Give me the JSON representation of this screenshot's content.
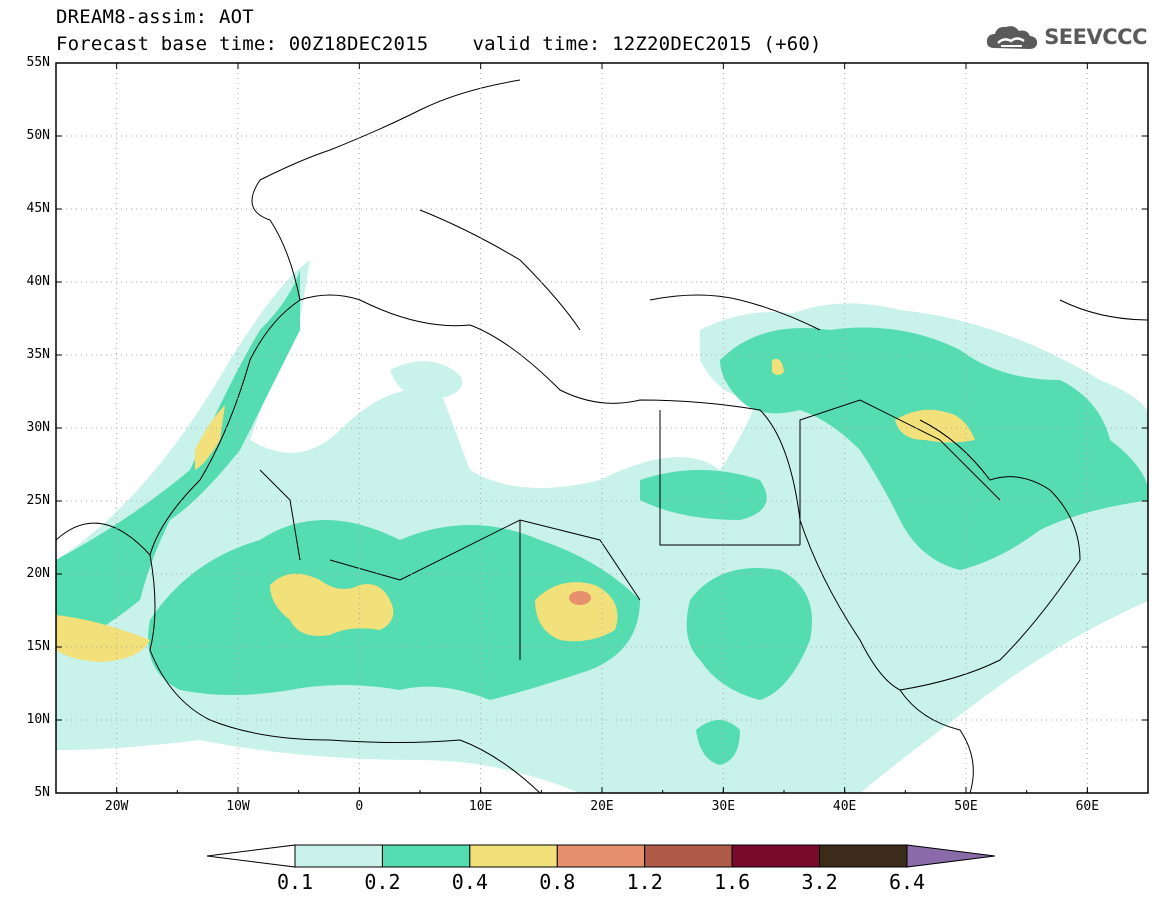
{
  "header": {
    "line1": "DREAM8-assim: AOT",
    "base_time": "Forecast base time: 00Z18DEC2015",
    "valid_time": "valid time: 12Z20DEC2015 (+60)"
  },
  "logo": {
    "text": "SEEVCCC",
    "icon": "cloud-icon"
  },
  "map": {
    "region": "North Africa, Europe and Middle East",
    "lon_range": [
      -25,
      65
    ],
    "lat_range": [
      5,
      55
    ],
    "lat_labels": [
      "55N",
      "50N",
      "45N",
      "40N",
      "35N",
      "30N",
      "25N",
      "20N",
      "15N",
      "10N",
      "5N"
    ],
    "lon_labels": [
      "20W",
      "10W",
      "0",
      "10E",
      "20E",
      "30E",
      "40E",
      "50E",
      "60E"
    ],
    "grid": "dotted",
    "variable": "AOT"
  },
  "colorbar": {
    "labels": [
      "0.1",
      "0.2",
      "0.4",
      "0.8",
      "1.2",
      "1.6",
      "3.2",
      "6.4"
    ],
    "colors": [
      "#ffffff",
      "#c8f2ea",
      "#55dcb0",
      "#f2e07a",
      "#e6906e",
      "#b05a4a",
      "#7a0a2a",
      "#3c2a1a",
      "#8a6aa8"
    ],
    "extend": "both"
  }
}
